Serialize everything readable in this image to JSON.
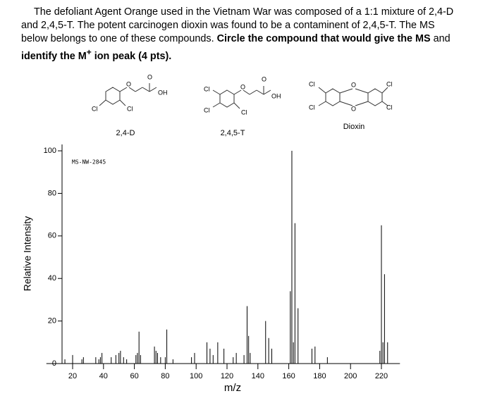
{
  "question": {
    "text": "The defoliant Agent Orange used in the Vietnam War was composed of a 1:1 mixture of 2,4-D and 2,4,5-T. The potent carcinogen dioxin was found to be a contaminent of 2,4,5-T. The MS below belongs to one of these compounds. ",
    "bold1": "Circle the compound that would give the MS",
    "mid": " and ",
    "bold2": "identify the M",
    "sup": "+",
    "bold3": " ion peak (4 pts)."
  },
  "structures": [
    {
      "name": "2,4-D",
      "labels": [
        "O",
        "OH",
        "O",
        "Cl",
        "Cl"
      ]
    },
    {
      "name": "2,4,5-T",
      "labels": [
        "O",
        "OH",
        "O",
        "Cl",
        "Cl",
        "Cl"
      ]
    },
    {
      "name": "Dioxin",
      "labels": [
        "O",
        "O",
        "Cl",
        "Cl",
        "Cl",
        "Cl"
      ]
    }
  ],
  "chart_data": {
    "type": "bar",
    "annotation": "MS-NW-2845",
    "xlabel": "m/z",
    "ylabel": "Relative Intensity",
    "x": [
      15,
      20,
      26,
      27,
      35,
      37,
      38,
      39,
      45,
      48,
      50,
      51,
      53,
      55,
      61,
      62,
      63,
      64,
      73,
      74,
      75,
      77,
      80,
      81,
      85,
      97,
      99,
      107,
      109,
      111,
      114,
      118,
      124,
      126,
      131,
      133,
      134,
      135,
      145,
      147,
      149,
      161,
      162,
      163,
      164,
      166,
      175,
      177,
      185,
      219,
      220,
      221,
      222,
      224
    ],
    "values": [
      2,
      4,
      2,
      3,
      3,
      2,
      3,
      5,
      3,
      4,
      5,
      6,
      3,
      2,
      4,
      5,
      15,
      4,
      8,
      6,
      5,
      3,
      3,
      16,
      2,
      3,
      5,
      10,
      7,
      4,
      10,
      7,
      3,
      5,
      4,
      27,
      13,
      5,
      20,
      12,
      7,
      34,
      100,
      10,
      66,
      26,
      7,
      8,
      3,
      6,
      65,
      10,
      42,
      10
    ],
    "color": "#000000",
    "xlim": [
      3,
      232
    ],
    "ylim": [
      0,
      103
    ],
    "xticks": [
      20,
      40,
      60,
      80,
      100,
      120,
      140,
      160,
      180,
      200,
      220
    ],
    "yticks": [
      0,
      20,
      40,
      60,
      80,
      100
    ]
  }
}
